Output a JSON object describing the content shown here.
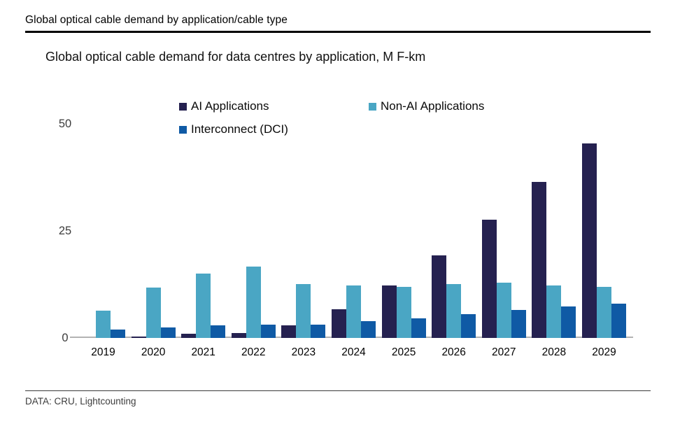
{
  "header": {
    "title": "Global optical cable demand by application/cable type"
  },
  "chart": {
    "title": "Global optical cable demand for data centres by application, M F-km"
  },
  "footer": {
    "source": "DATA: CRU, Lightcounting"
  },
  "chart_data": {
    "type": "bar",
    "title": "Global optical cable demand for data centres by application, M F-km",
    "unit": "M F-km",
    "categories": [
      "2019",
      "2020",
      "2021",
      "2022",
      "2023",
      "2024",
      "2025",
      "2026",
      "2027",
      "2028",
      "2029"
    ],
    "series": [
      {
        "name": "AI Applications",
        "color": "#252150",
        "values": [
          0,
          0.4,
          1.0,
          1.2,
          2.9,
          6.7,
          12.2,
          19.3,
          27.6,
          36.5,
          45.5
        ]
      },
      {
        "name": "Non-AI Applications",
        "color": "#4aa6c4",
        "values": [
          6.4,
          11.8,
          15.0,
          16.6,
          12.6,
          12.2,
          12.0,
          12.5,
          12.9,
          12.3,
          12.0
        ]
      },
      {
        "name": "Interconnect (DCI)",
        "color": "#0f5aa5",
        "values": [
          1.9,
          2.4,
          3.0,
          3.1,
          3.1,
          3.9,
          4.6,
          5.6,
          6.5,
          7.3,
          8.0
        ]
      }
    ],
    "ylim": [
      0,
      50
    ],
    "yticks": [
      0,
      25,
      50
    ],
    "grid": false,
    "legend_position": "top",
    "axis_color": "#b3b3b3"
  }
}
